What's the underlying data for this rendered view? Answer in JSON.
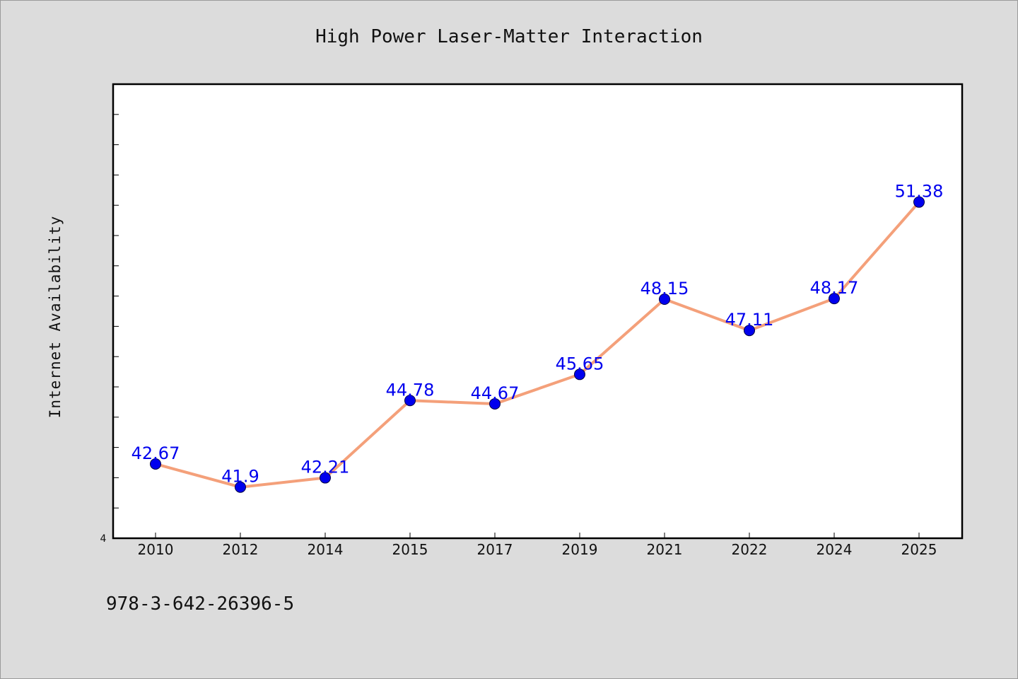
{
  "chart_data": {
    "type": "line",
    "title": "High Power Laser-Matter Interaction",
    "xlabel": "",
    "ylabel": "Internet Availability",
    "categories": [
      "2010",
      "2012",
      "2014",
      "2015",
      "2017",
      "2019",
      "2021",
      "2022",
      "2024",
      "2025"
    ],
    "series": [
      {
        "values": [
          42.67,
          41.9,
          42.21,
          44.78,
          44.67,
          45.65,
          48.15,
          47.11,
          48.17,
          51.38
        ]
      }
    ],
    "data_labels": [
      "42.67",
      "41.9",
      "42.21",
      "44.78",
      "44.67",
      "45.65",
      "48.15",
      "47.11",
      "48.17",
      "51.38"
    ],
    "y_tick_labels": [
      "4"
    ],
    "ylim": [
      40.2,
      55.3
    ],
    "grid": false,
    "line_color": "#f4a07a",
    "marker_color": "#0000ee",
    "label_color": "#0000ee"
  },
  "footer_text": "978-3-642-26396-5"
}
